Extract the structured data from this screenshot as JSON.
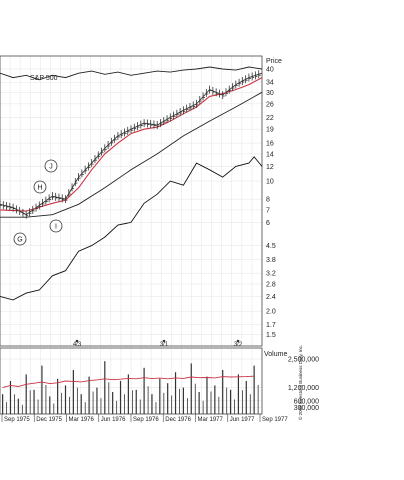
{
  "chart_data": {
    "type": "stock-chart",
    "index_label": "S&P 500",
    "price_axis_title": "Price",
    "volume_axis_title": "Volume",
    "price_scale": "log",
    "price_ticks": [
      1.5,
      1.7,
      2.0,
      2.4,
      2.8,
      3.2,
      3.8,
      4.5,
      6,
      7,
      8,
      10,
      12,
      14,
      16,
      19,
      22,
      26,
      30,
      34,
      40
    ],
    "price_tick_labels": [
      "1.5",
      "1.7",
      "2.0",
      "2.4",
      "2.8",
      "3.2",
      "3.8",
      "4.5",
      "6",
      "7",
      "8",
      "10",
      "12",
      "14",
      "16",
      "19",
      "22",
      "26",
      "30",
      "34",
      "40"
    ],
    "volume_ticks": [
      300000,
      600000,
      1200000,
      2500000
    ],
    "volume_tick_labels": [
      "300,000",
      "600,000",
      "1,200,000",
      "2,500,000"
    ],
    "x_labels": [
      "Sep 1975",
      "Dec 1975",
      "Mar 1976",
      "Jun 1976",
      "Sep 1976",
      "Dec 1976",
      "Mar 1977",
      "Jun 1977",
      "Sep 1977"
    ],
    "pattern_points": [
      "G",
      "H",
      "I",
      "J"
    ],
    "split_markers": [
      "4/3",
      "3/1",
      "3/2"
    ],
    "grid": true,
    "series": [
      {
        "key": "price",
        "color": "#333333",
        "x": [
          0,
          0.05,
          0.1,
          0.15,
          0.2,
          0.25,
          0.3,
          0.35,
          0.4,
          0.45,
          0.5,
          0.55,
          0.6,
          0.65,
          0.7,
          0.75,
          0.8,
          0.85,
          0.9,
          0.95,
          1.0
        ],
        "values": [
          7.5,
          7.2,
          6.6,
          7.4,
          8.3,
          8.0,
          10.5,
          12.5,
          15,
          17.5,
          19,
          20.5,
          20,
          22,
          24,
          26,
          31,
          29,
          33,
          36,
          38
        ]
      },
      {
        "key": "ma_short",
        "color": "#cc3344",
        "x": [
          0,
          0.1,
          0.2,
          0.25,
          0.3,
          0.35,
          0.4,
          0.45,
          0.5,
          0.55,
          0.6,
          0.65,
          0.7,
          0.75,
          0.8,
          0.85,
          0.9,
          0.95,
          1.0
        ],
        "values": [
          7.0,
          6.9,
          7.6,
          7.9,
          9.2,
          11.5,
          14,
          16,
          18,
          19,
          19.5,
          21,
          23,
          25,
          28.5,
          29.5,
          31,
          33,
          36
        ]
      },
      {
        "key": "ma_long",
        "color": "#222222",
        "x": [
          0,
          0.1,
          0.2,
          0.3,
          0.4,
          0.5,
          0.6,
          0.7,
          0.8,
          0.9,
          1.0
        ],
        "values": [
          6.4,
          6.4,
          6.6,
          7.5,
          9.2,
          11.5,
          14,
          17.5,
          21,
          25,
          30
        ]
      },
      {
        "key": "relative_strength",
        "color": "#111111",
        "x": [
          0,
          0.05,
          0.1,
          0.15,
          0.2,
          0.25,
          0.3,
          0.35,
          0.4,
          0.45,
          0.5,
          0.55,
          0.6,
          0.65,
          0.7,
          0.75,
          0.8,
          0.85,
          0.9,
          0.95,
          0.97,
          1.0
        ],
        "values": [
          2.4,
          2.3,
          2.5,
          2.6,
          3.1,
          3.3,
          4.2,
          4.5,
          5.0,
          5.8,
          6.0,
          7.6,
          8.5,
          10.0,
          9.5,
          12.5,
          11.5,
          10.5,
          12.0,
          12.5,
          13.5,
          12.0
        ]
      },
      {
        "key": "sp500",
        "color": "#222222",
        "x": [
          0,
          0.05,
          0.1,
          0.15,
          0.2,
          0.25,
          0.3,
          0.35,
          0.4,
          0.45,
          0.5,
          0.55,
          0.6,
          0.65,
          0.7,
          0.75,
          0.8,
          0.85,
          0.9,
          0.95,
          1.0
        ],
        "values": [
          38,
          36,
          37,
          35,
          37,
          36,
          38,
          39,
          37.5,
          38.5,
          37,
          38,
          39,
          38.5,
          39.5,
          40,
          41,
          40,
          39.5,
          41,
          40
        ]
      }
    ],
    "volume": {
      "x": [
        0.01,
        0.04,
        0.07,
        0.1,
        0.13,
        0.16,
        0.19,
        0.22,
        0.25,
        0.28,
        0.31,
        0.34,
        0.37,
        0.4,
        0.43,
        0.46,
        0.49,
        0.52,
        0.55,
        0.58,
        0.61,
        0.64,
        0.67,
        0.7,
        0.73,
        0.76,
        0.79,
        0.82,
        0.85,
        0.88,
        0.91,
        0.94,
        0.97
      ],
      "values": [
        900000,
        1500000,
        700000,
        1800000,
        1100000,
        2200000,
        800000,
        1600000,
        1300000,
        2000000,
        900000,
        1700000,
        1200000,
        2400000,
        1000000,
        1500000,
        1800000,
        1100000,
        2100000,
        900000,
        1600000,
        1400000,
        1900000,
        1200000,
        2300000,
        1000000,
        1700000,
        1300000,
        2000000,
        1100000,
        1800000,
        1500000,
        2200000
      ],
      "ma_values": [
        1200000,
        1300000,
        1250000,
        1350000,
        1400000,
        1450000,
        1380000,
        1420000,
        1500000,
        1480000,
        1460000,
        1520000,
        1550000,
        1600000,
        1560000,
        1580000,
        1620000,
        1600000,
        1650000,
        1610000,
        1630000,
        1600000,
        1640000,
        1620000,
        1680000,
        1650000,
        1660000,
        1640000,
        1700000,
        1680000,
        1690000,
        1700000,
        1720000
      ]
    }
  },
  "copyright": "© 2008 Investor's Business Daily, Inc."
}
